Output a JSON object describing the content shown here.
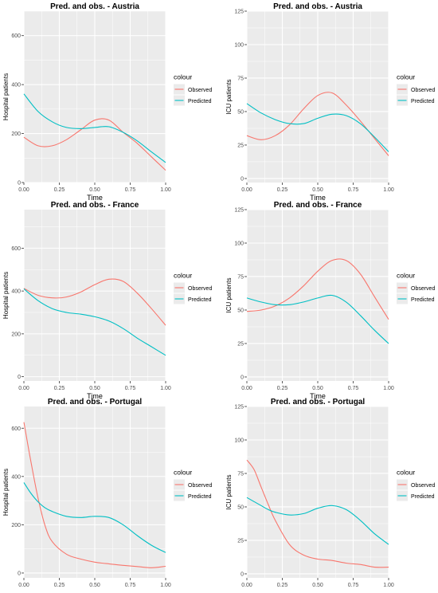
{
  "legend_title": "colour",
  "legend_items": [
    "Observed",
    "Predicted"
  ],
  "colors": {
    "observed": "#F8766D",
    "predicted": "#00BFC4",
    "panel": "#EBEBEB",
    "grid": "#FFFFFF",
    "text": "#000000",
    "tick": "#4D4D4D"
  },
  "chart_data": [
    {
      "type": "line",
      "title": "Pred. and obs. - Austria",
      "xlabel": "Time",
      "ylabel": "Hospital patients",
      "xlim": [
        0,
        1
      ],
      "ylim": [
        0,
        700
      ],
      "xticks": [
        "0.00",
        "0.25",
        "0.50",
        "0.75",
        "1.00"
      ],
      "xtick_values": [
        0,
        0.25,
        0.5,
        0.75,
        1
      ],
      "yticks": [
        "0",
        "200",
        "400",
        "600"
      ],
      "ytick_values": [
        0,
        200,
        400,
        600
      ],
      "grid": true,
      "legend": "right",
      "x": [
        0,
        0.1,
        0.2,
        0.3,
        0.4,
        0.5,
        0.6,
        0.7,
        0.8,
        0.9,
        1.0
      ],
      "series": [
        {
          "name": "Observed",
          "values": [
            185,
            150,
            150,
            175,
            215,
            255,
            255,
            205,
            160,
            105,
            50
          ]
        },
        {
          "name": "Predicted",
          "values": [
            362,
            290,
            248,
            225,
            220,
            225,
            228,
            205,
            170,
            125,
            82
          ]
        }
      ]
    },
    {
      "type": "line",
      "title": "Pred. and obs. - Austria",
      "xlabel": "Time",
      "ylabel": "ICU patients",
      "xlim": [
        0,
        1
      ],
      "ylim": [
        -3,
        125
      ],
      "xticks": [
        "0.00",
        "0.25",
        "0.50",
        "0.75",
        "1.00"
      ],
      "xtick_values": [
        0,
        0.25,
        0.5,
        0.75,
        1
      ],
      "yticks": [
        "0",
        "25",
        "50",
        "75",
        "100",
        "125"
      ],
      "ytick_values": [
        0,
        25,
        50,
        75,
        100,
        125
      ],
      "grid": true,
      "legend": "right",
      "x": [
        0,
        0.1,
        0.2,
        0.3,
        0.4,
        0.5,
        0.6,
        0.7,
        0.8,
        0.9,
        1.0
      ],
      "series": [
        {
          "name": "Observed",
          "values": [
            32,
            29,
            32,
            40,
            52,
            62,
            64,
            55,
            43,
            30,
            17
          ]
        },
        {
          "name": "Predicted",
          "values": [
            56,
            49,
            44,
            41,
            41,
            45,
            48,
            47,
            41,
            31,
            20
          ]
        }
      ]
    },
    {
      "type": "line",
      "title": "Pred. and obs. - France",
      "xlabel": "Time",
      "ylabel": "Hospital patients",
      "xlim": [
        0,
        1
      ],
      "ylim": [
        -20,
        780
      ],
      "xticks": [
        "0.00",
        "0.25",
        "0.50",
        "0.75",
        "1.00"
      ],
      "xtick_values": [
        0,
        0.25,
        0.5,
        0.75,
        1
      ],
      "yticks": [
        "0",
        "200",
        "400",
        "600"
      ],
      "ytick_values": [
        0,
        200,
        400,
        600
      ],
      "grid": true,
      "legend": "right",
      "x": [
        0,
        0.1,
        0.2,
        0.3,
        0.4,
        0.5,
        0.6,
        0.7,
        0.8,
        0.9,
        1.0
      ],
      "series": [
        {
          "name": "Observed",
          "values": [
            412,
            380,
            368,
            372,
            395,
            430,
            455,
            445,
            390,
            318,
            240
          ]
        },
        {
          "name": "Predicted",
          "values": [
            410,
            355,
            318,
            300,
            292,
            280,
            260,
            225,
            180,
            140,
            100
          ]
        }
      ]
    },
    {
      "type": "line",
      "title": "Pred. and obs. - France",
      "xlabel": "Time",
      "ylabel": "ICU patients",
      "xlim": [
        0,
        1
      ],
      "ylim": [
        -3,
        125
      ],
      "xticks": [
        "0.00",
        "0.25",
        "0.50",
        "0.75",
        "1.00"
      ],
      "xtick_values": [
        0,
        0.25,
        0.5,
        0.75,
        1
      ],
      "yticks": [
        "0",
        "25",
        "50",
        "75",
        "100",
        "125"
      ],
      "ytick_values": [
        0,
        25,
        50,
        75,
        100,
        125
      ],
      "grid": true,
      "legend": "right",
      "x": [
        0,
        0.1,
        0.2,
        0.3,
        0.4,
        0.5,
        0.6,
        0.7,
        0.8,
        0.9,
        1.0
      ],
      "series": [
        {
          "name": "Observed",
          "values": [
            49,
            50,
            53,
            59,
            68,
            79,
            87,
            87,
            77,
            60,
            43
          ]
        },
        {
          "name": "Predicted",
          "values": [
            59,
            56,
            54,
            54,
            56,
            59,
            61,
            56,
            46,
            35,
            25
          ]
        }
      ]
    },
    {
      "type": "line",
      "title": "Pred. and obs. - Portugal",
      "xlabel": "Time",
      "ylabel": "Hospital patients",
      "xlim": [
        0,
        1
      ],
      "ylim": [
        -20,
        690
      ],
      "xticks": [
        "0.00",
        "0.25",
        "0.50",
        "0.75",
        "1.00"
      ],
      "xtick_values": [
        0,
        0.25,
        0.5,
        0.75,
        1
      ],
      "yticks": [
        "0",
        "200",
        "400",
        "600"
      ],
      "ytick_values": [
        0,
        200,
        400,
        600
      ],
      "grid": true,
      "legend": "right",
      "x": [
        0,
        0.05,
        0.1,
        0.15,
        0.2,
        0.3,
        0.4,
        0.5,
        0.6,
        0.7,
        0.8,
        0.9,
        1.0
      ],
      "series": [
        {
          "name": "Observed",
          "values": [
            625,
            460,
            310,
            195,
            130,
            78,
            58,
            45,
            38,
            32,
            27,
            22,
            28
          ]
        },
        {
          "name": "Predicted",
          "values": [
            375,
            330,
            295,
            270,
            255,
            235,
            230,
            235,
            230,
            200,
            155,
            115,
            85
          ]
        }
      ]
    },
    {
      "type": "line",
      "title": "Pred. and obs. - Portugal",
      "xlabel": "Time",
      "ylabel": "ICU patients",
      "xlim": [
        0,
        1
      ],
      "ylim": [
        -3,
        125
      ],
      "xticks": [
        "0.00",
        "0.25",
        "0.50",
        "0.75",
        "1.00"
      ],
      "xtick_values": [
        0,
        0.25,
        0.5,
        0.75,
        1
      ],
      "yticks": [
        "0",
        "25",
        "50",
        "75",
        "100",
        "125"
      ],
      "ytick_values": [
        0,
        25,
        50,
        75,
        100,
        125
      ],
      "grid": true,
      "legend": "right",
      "x": [
        0,
        0.05,
        0.1,
        0.15,
        0.2,
        0.3,
        0.4,
        0.5,
        0.6,
        0.7,
        0.8,
        0.9,
        1.0
      ],
      "series": [
        {
          "name": "Observed",
          "values": [
            85,
            78,
            65,
            52,
            40,
            22,
            14,
            11,
            10,
            8,
            7,
            5,
            5
          ]
        },
        {
          "name": "Predicted",
          "values": [
            57,
            54,
            51,
            48,
            46,
            44,
            45,
            49,
            51,
            48,
            40,
            30,
            22
          ]
        }
      ]
    }
  ]
}
